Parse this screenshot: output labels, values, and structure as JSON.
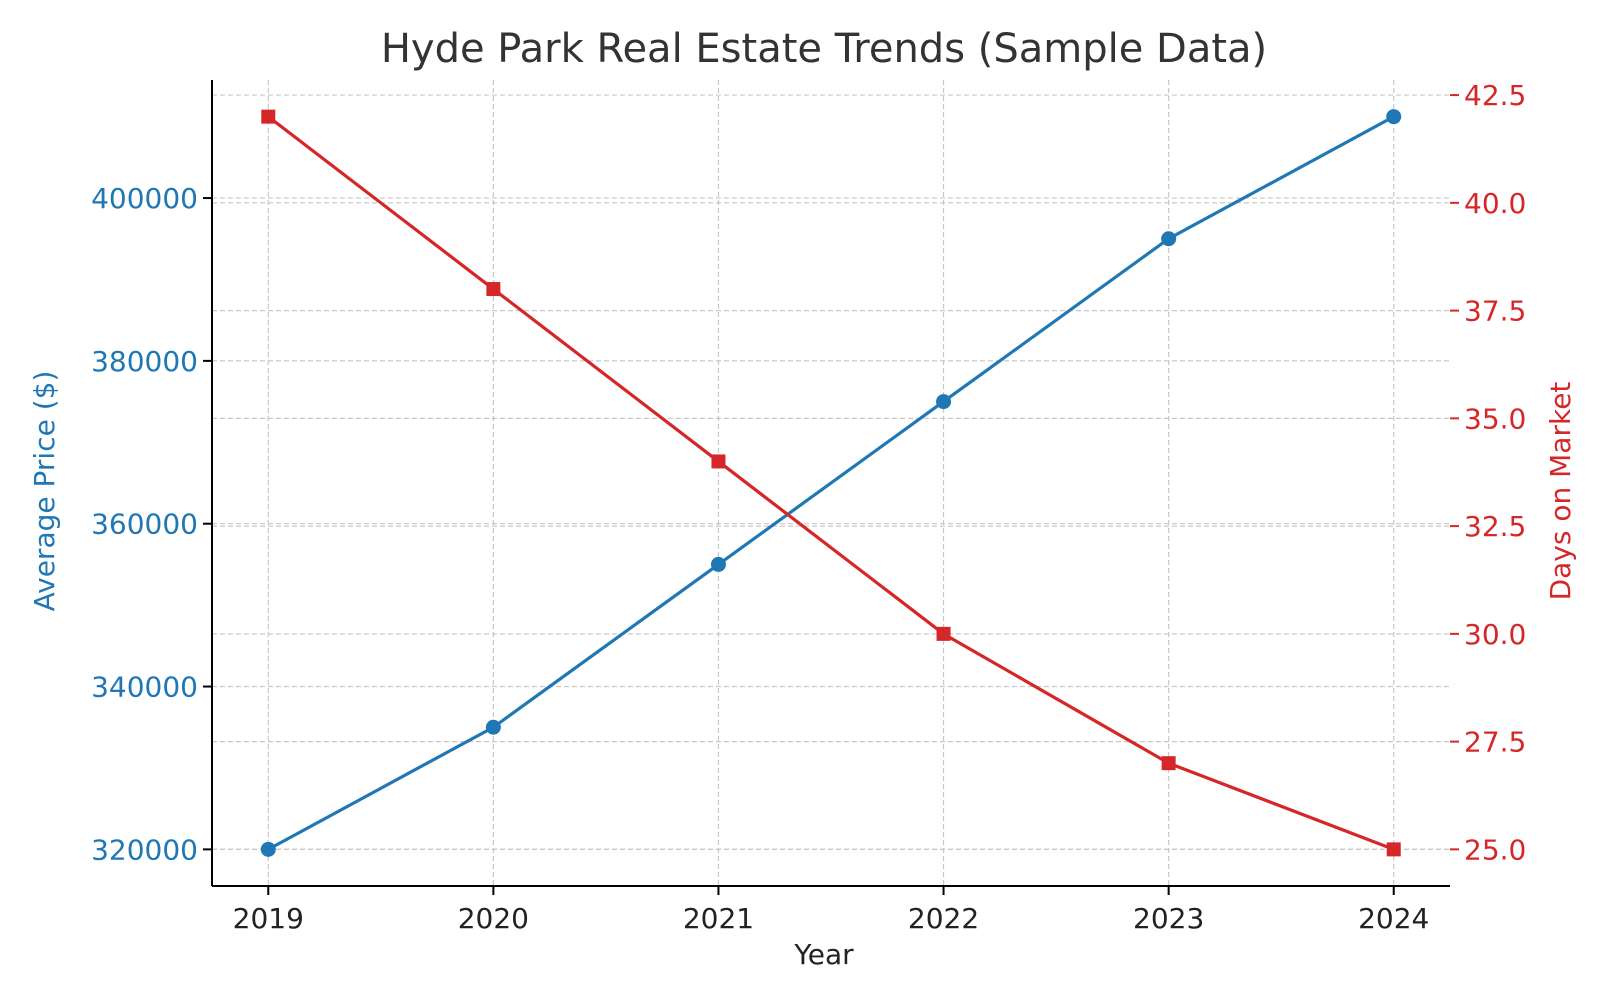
{
  "chart_data": {
    "type": "line",
    "title": "Hyde Park Real Estate Trends (Sample Data)",
    "xlabel": "Year",
    "x": [
      2019,
      2020,
      2021,
      2022,
      2023,
      2024
    ],
    "x_tick_labels": [
      "2019",
      "2020",
      "2021",
      "2022",
      "2023",
      "2024"
    ],
    "grid": true,
    "series": [
      {
        "axis": "left",
        "ylabel": "Average Price ($)",
        "color": "#1f77b4",
        "marker": "circle",
        "values": [
          320000,
          335000,
          355000,
          375000,
          395000,
          410000
        ],
        "ylim": [
          315500,
          414500
        ],
        "ticks": [
          320000,
          340000,
          360000,
          380000,
          400000
        ],
        "tick_labels": [
          "320000",
          "340000",
          "360000",
          "380000",
          "400000"
        ]
      },
      {
        "axis": "right",
        "ylabel": "Days on Market",
        "color": "#d62728",
        "marker": "square",
        "values": [
          42,
          38,
          34,
          30,
          27,
          25
        ],
        "ylim": [
          24.15,
          42.85
        ],
        "ticks": [
          25.0,
          27.5,
          30.0,
          32.5,
          35.0,
          37.5,
          40.0,
          42.5
        ],
        "tick_labels": [
          "25.0",
          "27.5",
          "30.0",
          "32.5",
          "35.0",
          "37.5",
          "40.0",
          "42.5"
        ]
      }
    ]
  }
}
